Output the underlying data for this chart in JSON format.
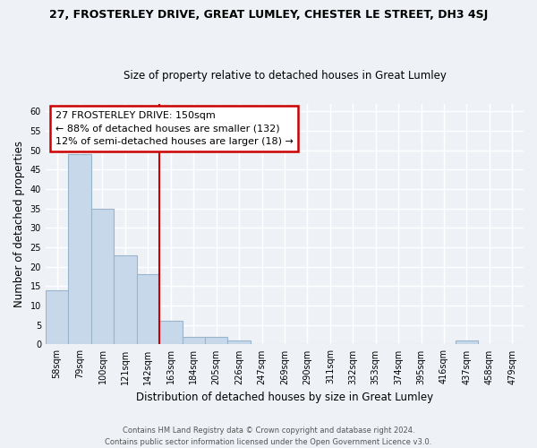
{
  "title": "27, FROSTERLEY DRIVE, GREAT LUMLEY, CHESTER LE STREET, DH3 4SJ",
  "subtitle": "Size of property relative to detached houses in Great Lumley",
  "xlabel": "Distribution of detached houses by size in Great Lumley",
  "ylabel": "Number of detached properties",
  "bar_labels": [
    "58sqm",
    "79sqm",
    "100sqm",
    "121sqm",
    "142sqm",
    "163sqm",
    "184sqm",
    "205sqm",
    "226sqm",
    "247sqm",
    "269sqm",
    "290sqm",
    "311sqm",
    "332sqm",
    "353sqm",
    "374sqm",
    "395sqm",
    "416sqm",
    "437sqm",
    "458sqm",
    "479sqm"
  ],
  "bar_values": [
    14,
    49,
    35,
    23,
    18,
    6,
    2,
    2,
    1,
    0,
    0,
    0,
    0,
    0,
    0,
    0,
    0,
    0,
    1,
    0,
    0
  ],
  "bar_color": "#c8d8eb",
  "bar_edge_color": "#9ab4cc",
  "annotation_title": "27 FROSTERLEY DRIVE: 150sqm",
  "annotation_line1": "← 88% of detached houses are smaller (132)",
  "annotation_line2": "12% of semi-detached houses are larger (18) →",
  "annotation_box_color": "#ffffff",
  "annotation_box_edge_color": "#cc0000",
  "vline_color": "#cc0000",
  "ylim": [
    0,
    62
  ],
  "yticks": [
    0,
    5,
    10,
    15,
    20,
    25,
    30,
    35,
    40,
    45,
    50,
    55,
    60
  ],
  "background_color": "#eef2f7",
  "grid_color": "#ffffff",
  "footer_line1": "Contains HM Land Registry data © Crown copyright and database right 2024.",
  "footer_line2": "Contains public sector information licensed under the Open Government Licence v3.0."
}
